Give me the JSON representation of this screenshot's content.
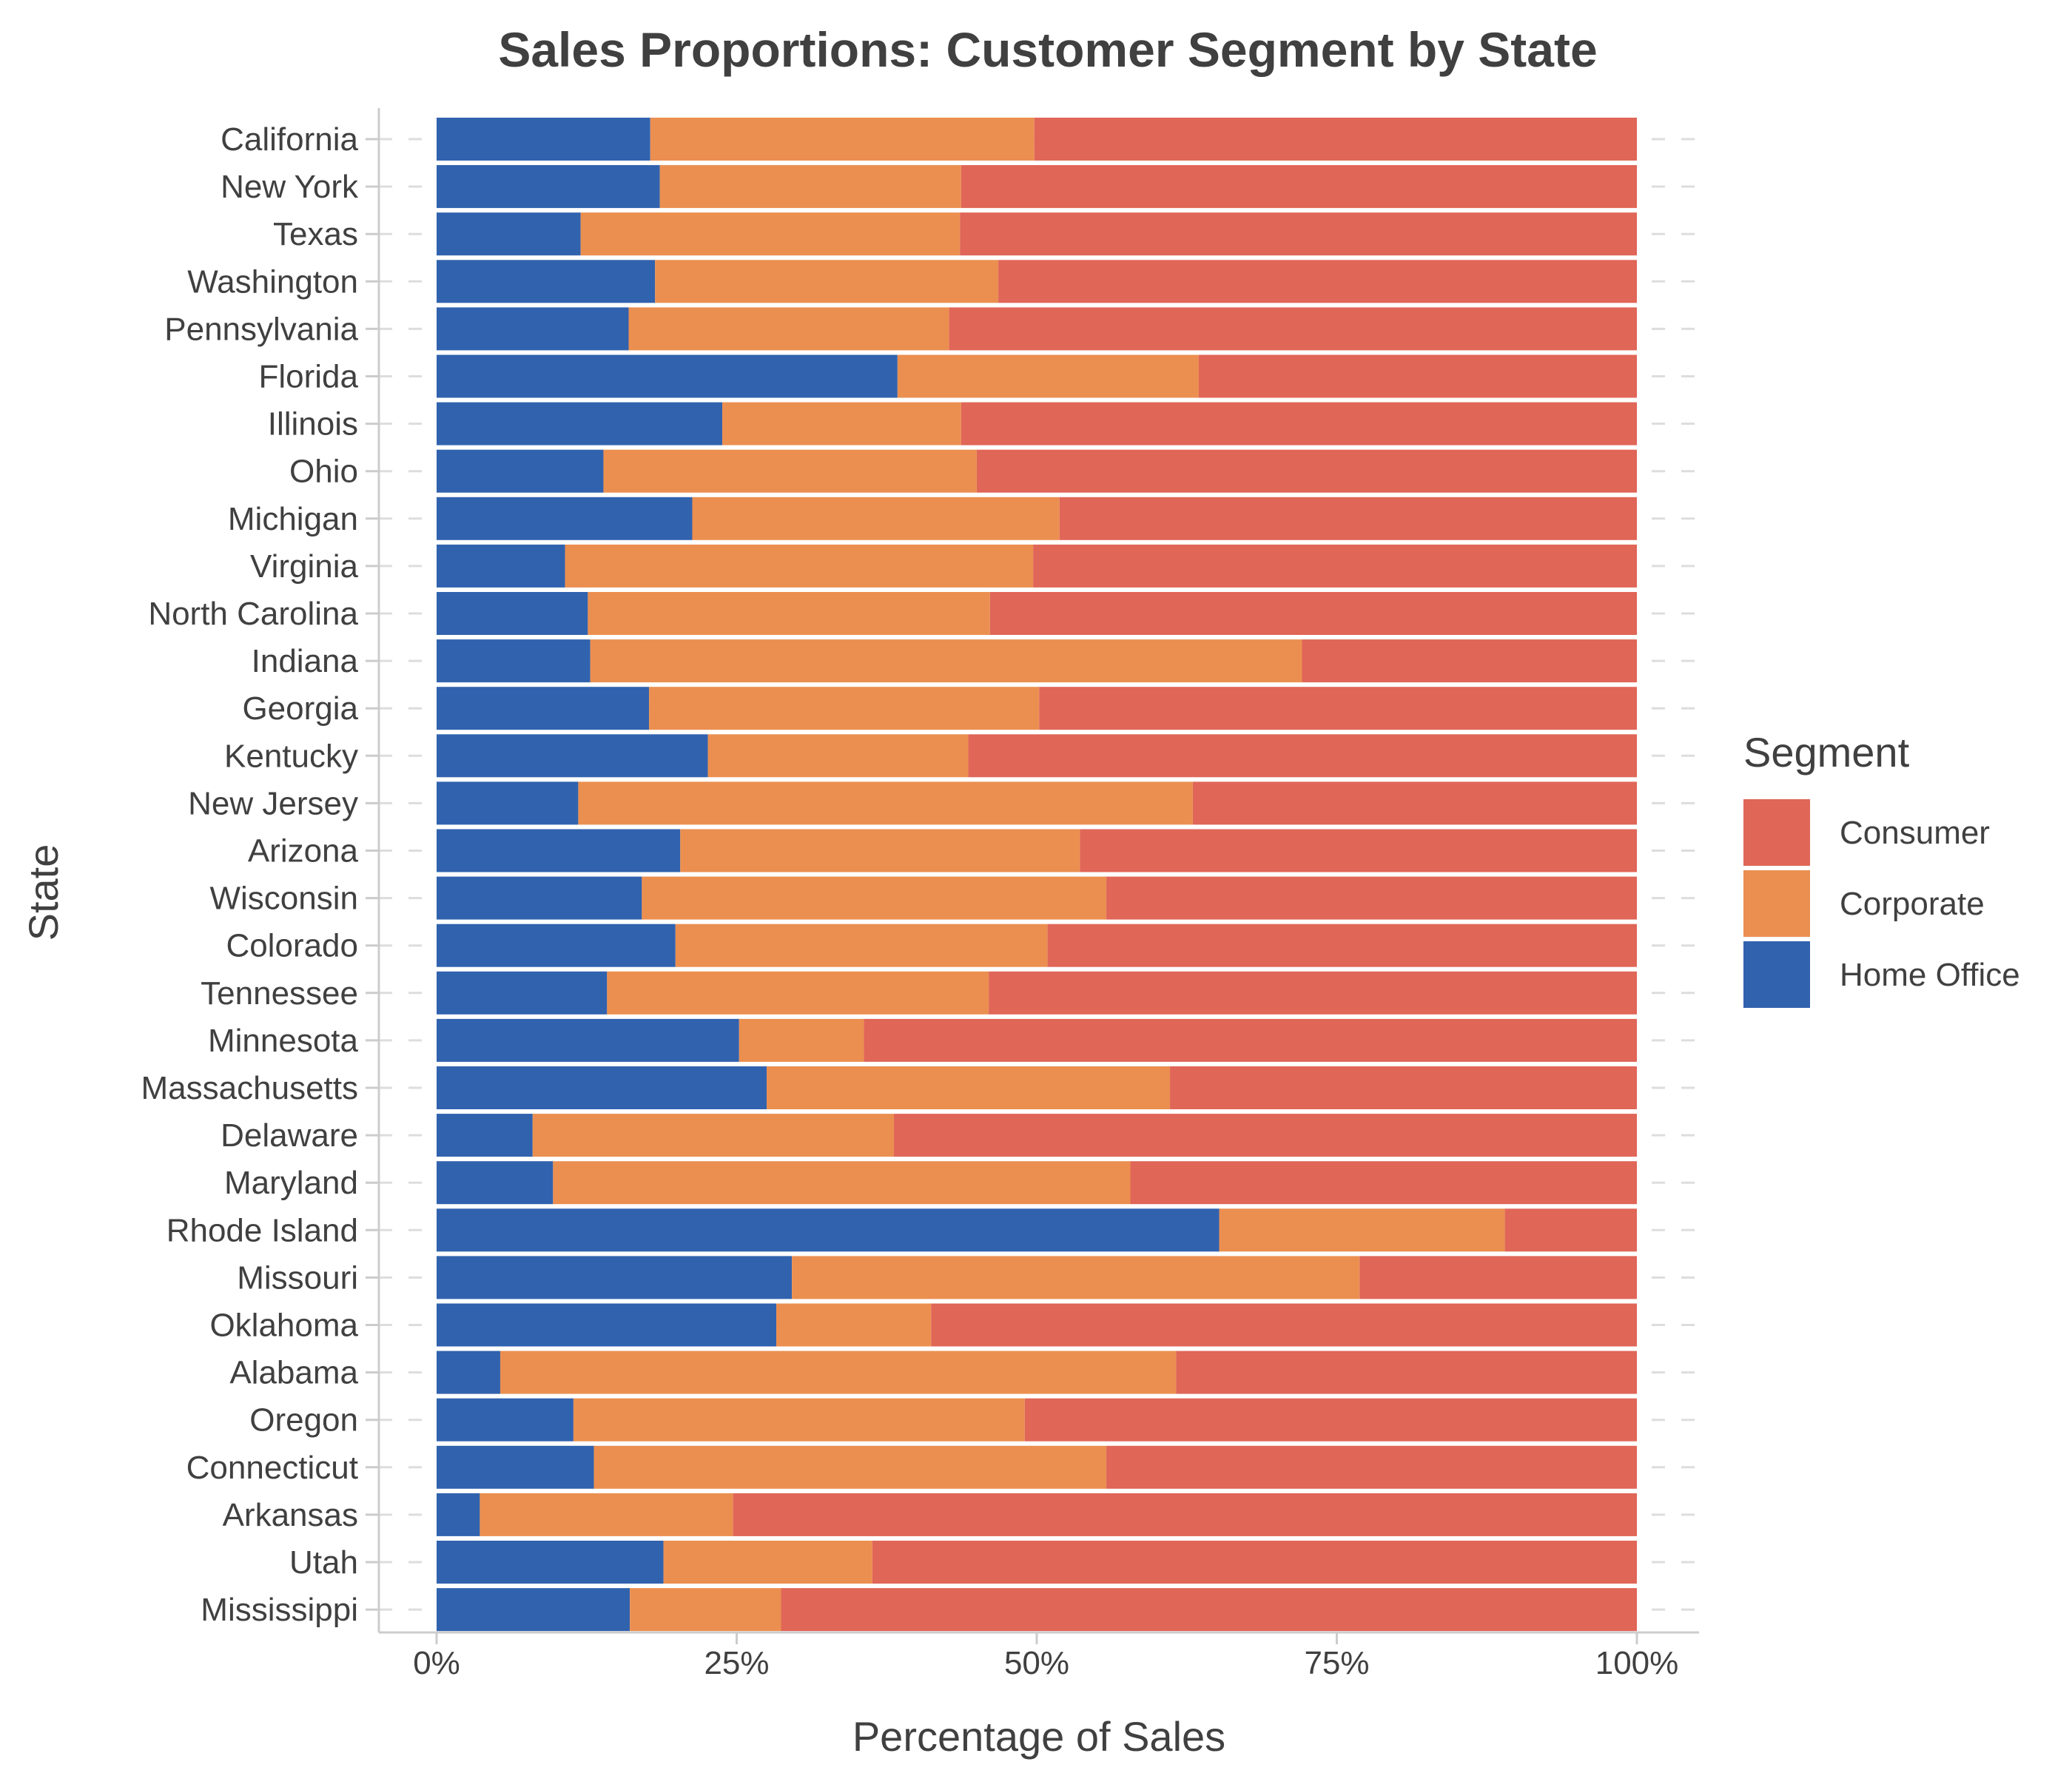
{
  "chart_data": {
    "type": "bar",
    "orientation": "horizontal",
    "stacked": "percent",
    "title": "Sales Proportions: Customer Segment by State",
    "xlabel": "Percentage of Sales",
    "ylabel": "State",
    "xlim": [
      0,
      100
    ],
    "x_ticks": [
      "0%",
      "25%",
      "50%",
      "75%",
      "100%"
    ],
    "grid": "horizontal dashed",
    "legend": {
      "title": "Segment",
      "placement": "right"
    },
    "categories": [
      "California",
      "New York",
      "Texas",
      "Washington",
      "Pennsylvania",
      "Florida",
      "Illinois",
      "Ohio",
      "Michigan",
      "Virginia",
      "North Carolina",
      "Indiana",
      "Georgia",
      "Kentucky",
      "New Jersey",
      "Arizona",
      "Wisconsin",
      "Colorado",
      "Tennessee",
      "Minnesota",
      "Massachusetts",
      "Delaware",
      "Maryland",
      "Rhode Island",
      "Missouri",
      "Oklahoma",
      "Alabama",
      "Oregon",
      "Connecticut",
      "Arkansas",
      "Utah",
      "Mississippi"
    ],
    "series": [
      {
        "name": "Home Office",
        "color": "#3162AE",
        "values": [
          17.8,
          18.6,
          12.0,
          18.2,
          16.0,
          38.4,
          23.8,
          13.9,
          21.3,
          10.7,
          12.6,
          12.8,
          17.7,
          22.6,
          11.8,
          20.3,
          17.1,
          19.9,
          14.2,
          25.2,
          27.5,
          8.0,
          9.7,
          65.2,
          29.6,
          28.3,
          5.3,
          11.4,
          13.1,
          3.6,
          18.9,
          16.1
        ]
      },
      {
        "name": "Corporate",
        "color": "#EB8F50",
        "values": [
          32.0,
          25.1,
          31.6,
          28.6,
          26.7,
          25.1,
          19.9,
          31.1,
          30.6,
          39.0,
          33.5,
          59.3,
          32.5,
          21.7,
          51.2,
          33.3,
          38.7,
          31.0,
          31.8,
          10.4,
          33.6,
          30.1,
          48.1,
          23.8,
          47.3,
          12.9,
          56.3,
          37.6,
          42.7,
          21.1,
          17.4,
          12.6
        ]
      },
      {
        "name": "Consumer",
        "color": "#E06658",
        "values": [
          50.2,
          56.3,
          56.4,
          53.2,
          57.3,
          36.5,
          56.3,
          55.0,
          48.1,
          50.3,
          53.9,
          27.9,
          49.8,
          55.7,
          37.0,
          46.4,
          44.2,
          49.1,
          54.0,
          64.4,
          38.9,
          61.9,
          42.2,
          11.0,
          23.1,
          58.8,
          38.4,
          51.0,
          44.2,
          75.3,
          63.7,
          71.3
        ]
      }
    ],
    "legend_order": [
      "Consumer",
      "Corporate",
      "Home Office"
    ]
  }
}
